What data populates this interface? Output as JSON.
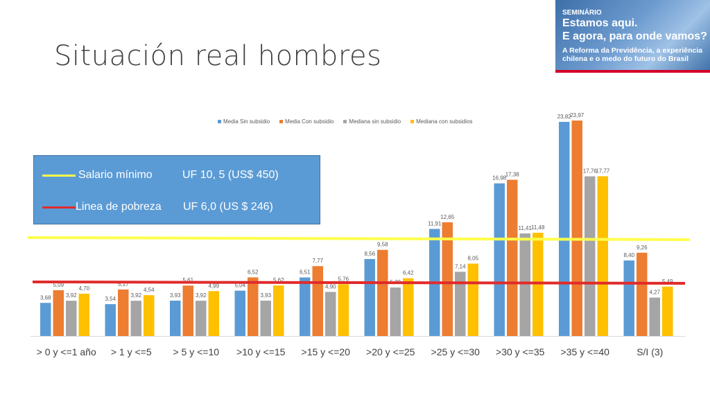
{
  "slide": {
    "title": "Situación real hombres"
  },
  "banner": {
    "line1": "SEMINÁRIO",
    "line2": "Estamos aqui.",
    "line3": "E agora, para onde vamos?",
    "line4": "A Reforma da Previdência, a experiência chilena e o medo do futuro do Brasil"
  },
  "reference_box": {
    "rows": [
      {
        "label": "Salario mínimo",
        "value": "UF 10, 5 (US$ 450)",
        "color": "#ffff4d"
      },
      {
        "label": "Linea de pobreza",
        "value": "UF  6,0 (US $ 246)",
        "color": "#e02b2b"
      }
    ]
  },
  "chart_data": {
    "type": "bar",
    "categories": [
      "> 0 y <=1 año",
      "> 1 y <=5",
      "> 5 y <=10",
      ">10 y <=15",
      ">15 y <=20",
      ">20 y <=25",
      ">25 y <=30",
      ">30 y <=35",
      ">35 y <=40",
      "S/I (3)"
    ],
    "series": [
      {
        "name": "Media Sin subsidio",
        "color": "#5b9bd5",
        "values": [
          3.68,
          3.54,
          3.93,
          5.04,
          6.51,
          8.56,
          11.91,
          16.98,
          23.82,
          8.4
        ],
        "labels": [
          "3,68",
          "3,54",
          "3,93",
          "5,04",
          "6,51",
          "8,56",
          "11,91",
          "16,98",
          "23,82",
          "8,40"
        ]
      },
      {
        "name": "Media Con subsidio",
        "color": "#ed7d31",
        "values": [
          5.09,
          5.17,
          5.61,
          6.52,
          7.77,
          9.58,
          12.65,
          17.38,
          23.97,
          9.26
        ],
        "labels": [
          "5,09",
          "5,17",
          "5,61",
          "6,52",
          "7,77",
          "9,58",
          "12,65",
          "17,38",
          "23,97",
          "9,26"
        ]
      },
      {
        "name": "Mediana sin subsidio",
        "color": "#a5a5a5",
        "values": [
          3.92,
          3.92,
          3.92,
          3.93,
          4.9,
          5.39,
          7.14,
          11.41,
          17.76,
          4.27
        ],
        "labels": [
          "3,92",
          "3,92",
          "3,92",
          "3,93",
          "4,90",
          "5,39",
          "7,14",
          "11,41",
          "17,76",
          "4,27"
        ]
      },
      {
        "name": "Mediana con subsidios",
        "color": "#ffc000",
        "values": [
          4.7,
          4.54,
          4.99,
          5.62,
          5.76,
          6.42,
          8.05,
          11.48,
          17.77,
          5.49
        ],
        "labels": [
          "4,70",
          "4,54",
          "4,99",
          "5,62",
          "5,76",
          "6,42",
          "8,05",
          "11,48",
          "17,77",
          "5,49"
        ]
      }
    ],
    "reference_lines": [
      {
        "name": "Salario mínimo",
        "value": 10.5,
        "color": "#ffff4d"
      },
      {
        "name": "Linea de pobreza",
        "value": 6.0,
        "color": "#e02b2b"
      }
    ],
    "ylim": [
      0,
      24
    ],
    "legend": "top",
    "grid": false
  }
}
